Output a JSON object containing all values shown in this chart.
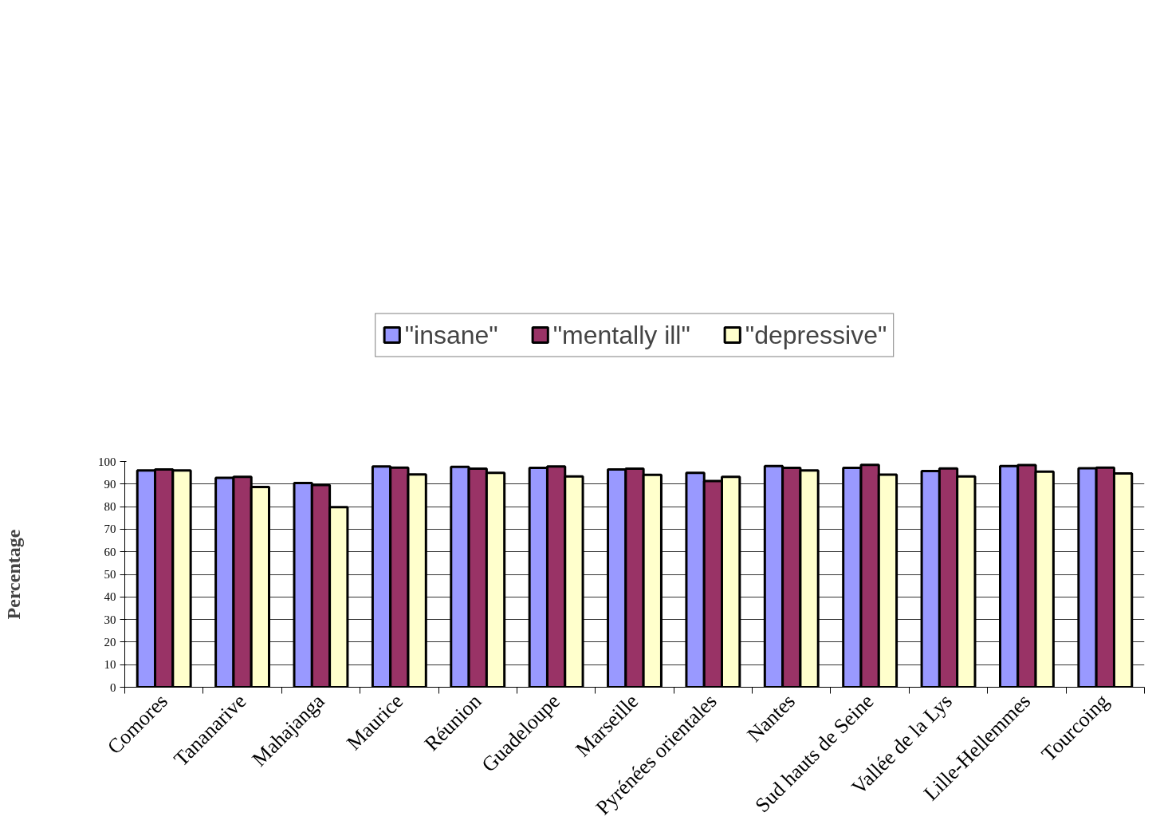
{
  "chart_data": {
    "type": "bar",
    "ylabel": "Percentage",
    "categories": [
      "Comores",
      "Tananarive",
      "Mahajanga",
      "Maurice",
      "Réunion",
      "Guadeloupe",
      "Marseille",
      "Pyrénées orientales",
      "Nantes",
      "Sud hauts de Seine",
      "Vallée de la Lys",
      "Lille-Hellemmes",
      "Tourcoing"
    ],
    "series": [
      {
        "name": "\"insane\"",
        "color": "#9999ff",
        "values": [
          96,
          92.8,
          90.5,
          97.8,
          97.6,
          97.2,
          96.5,
          95,
          98,
          97.2,
          95.8,
          98,
          97
        ]
      },
      {
        "name": "\"mentally ill\"",
        "color": "#993366",
        "values": [
          96.5,
          93.2,
          89.6,
          97.3,
          96.8,
          97.8,
          96.8,
          91.3,
          97.2,
          98.5,
          96.9,
          98.4,
          97.3
        ]
      },
      {
        "name": "\"depressive\"",
        "color": "#ffffcc",
        "values": [
          96,
          88.7,
          79.8,
          94.3,
          95,
          93.4,
          94.1,
          93.2,
          96,
          94.2,
          93.4,
          95.5,
          94.7
        ]
      }
    ],
    "ylim": [
      0,
      100
    ],
    "yticks": [
      0,
      10,
      20,
      30,
      40,
      50,
      60,
      70,
      80,
      90,
      100
    ],
    "grid": "y",
    "legend": "top"
  }
}
